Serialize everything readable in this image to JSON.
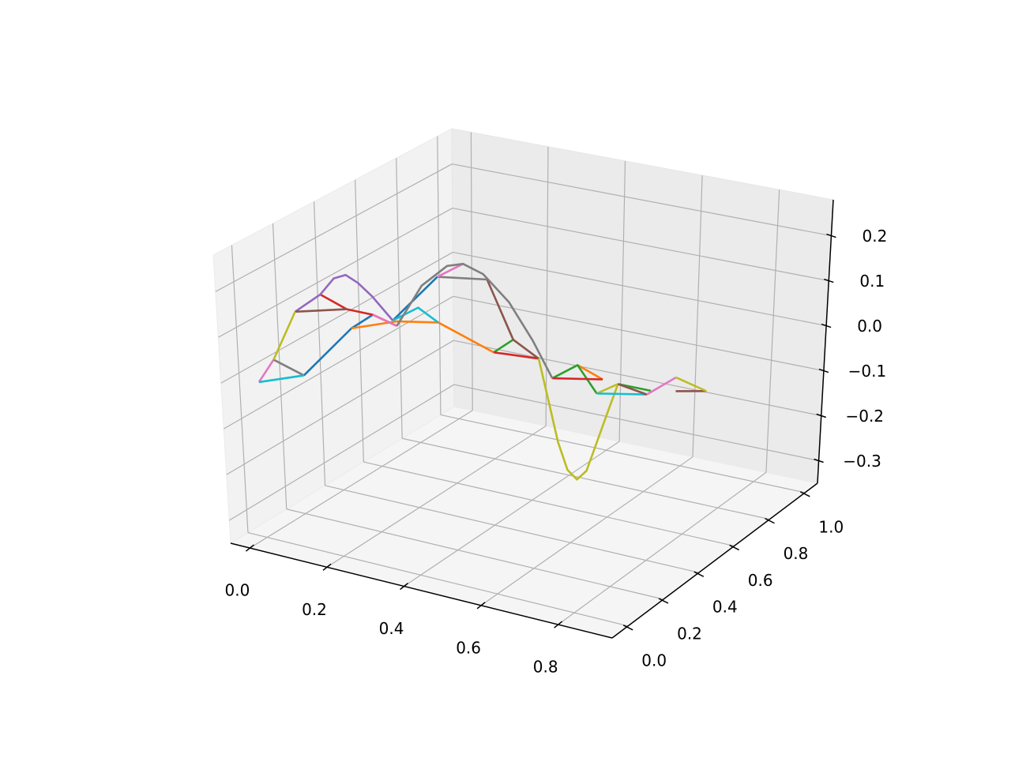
{
  "chart_data": {
    "type": "line3d",
    "xlim": [
      -0.05,
      0.94
    ],
    "ylim": [
      -0.09,
      1.07
    ],
    "zlim": [
      -0.35,
      0.28
    ],
    "xticks": [
      {
        "value": 0,
        "label": "0.0"
      },
      0.2,
      0.4,
      0.6,
      0.8
    ],
    "yticks": [
      {
        "value": 0,
        "label": "0.0"
      },
      0.2,
      0.4,
      0.6,
      0.8,
      {
        "value": 1,
        "label": "1.0"
      }
    ],
    "zticks": [
      {
        "value": -0.3,
        "label": "−0.3"
      },
      {
        "value": -0.2,
        "label": "−0.2"
      },
      {
        "value": -0.1,
        "label": "−0.1"
      },
      {
        "value": 0,
        "label": "0.0"
      },
      0.1,
      0.2
    ],
    "grid": true,
    "series": [
      {
        "color": "#1f77b4",
        "x": [
          0.09,
          0.19,
          0.23
        ],
        "y": [
          0.05,
          0.1,
          0.13
        ],
        "z": [
          0.01,
          0.12,
          0.15
        ]
      },
      {
        "color": "#ff7f0e",
        "x": [
          0.19,
          0.28,
          0.36,
          0.47
        ],
        "y": [
          0.1,
          0.15,
          0.2,
          0.26
        ],
        "z": [
          0.12,
          0.14,
          0.14,
          0.08
        ]
      },
      {
        "color": "#2ca02c",
        "x": [
          0.47,
          0.51
        ],
        "y": [
          0.26,
          0.28
        ],
        "z": [
          0.08,
          0.11
        ]
      },
      {
        "color": "#d62728",
        "x": [
          0.13,
          0.18,
          0.23,
          0.28
        ],
        "y": [
          0.07,
          0.1,
          0.13,
          0.15
        ],
        "z": [
          0.19,
          0.16,
          0.15,
          0.13
        ]
      },
      {
        "color": "#9467bd",
        "x": [
          0.08,
          0.13,
          0.155,
          0.18,
          0.205,
          0.23,
          0.27
        ],
        "y": [
          0.04,
          0.07,
          0.09,
          0.1,
          0.11,
          0.13,
          0.15
        ],
        "z": [
          0.15,
          0.19,
          0.225,
          0.235,
          0.22,
          0.19,
          0.14
        ]
      },
      {
        "color": "#8c564b",
        "x": [
          0.08,
          0.18
        ],
        "y": [
          0.04,
          0.1
        ],
        "z": [
          0.15,
          0.16
        ]
      },
      {
        "color": "#e377c2",
        "x": [
          0,
          0.03
        ],
        "y": [
          0,
          0.02
        ],
        "z": [
          -0.01,
          0.04
        ]
      },
      {
        "color": "#7f7f7f",
        "x": [
          0.03,
          0.09
        ],
        "y": [
          0.02,
          0.05
        ],
        "z": [
          0.04,
          0.01
        ]
      },
      {
        "color": "#bcbd22",
        "x": [
          0.03,
          0.08
        ],
        "y": [
          0.02,
          0.04
        ],
        "z": [
          0.04,
          0.15
        ]
      },
      {
        "color": "#17becf",
        "x": [
          0,
          0.09
        ],
        "y": [
          0,
          0.05
        ],
        "z": [
          -0.01,
          0.01
        ]
      },
      {
        "color": "#1f77b4",
        "x": [
          0.27,
          0.36
        ],
        "y": [
          0.15,
          0.2
        ],
        "z": [
          0.14,
          0.24
        ]
      },
      {
        "color": "#ff7f0e",
        "x": [
          0.64,
          0.69
        ],
        "y": [
          0.35,
          0.38
        ],
        "z": [
          0.06,
          0.03
        ]
      },
      {
        "color": "#2ca02c",
        "x": [
          0.59,
          0.64,
          0.68
        ],
        "y": [
          0.32,
          0.35,
          0.37
        ],
        "z": [
          0.03,
          0.06,
          0.0
        ]
      },
      {
        "color": "#d62728",
        "x": [
          0.47,
          0.56
        ],
        "y": [
          0.26,
          0.31
        ],
        "z": [
          0.08,
          0.07
        ]
      },
      {
        "color": "#8c564b",
        "x": [
          0.46,
          0.51,
          0.56
        ],
        "y": [
          0.25,
          0.28,
          0.31
        ],
        "z": [
          0.24,
          0.11,
          0.07
        ]
      },
      {
        "color": "#e377c2",
        "x": [
          0.23,
          0.28
        ],
        "y": [
          0.13,
          0.15
        ],
        "z": [
          0.15,
          0.13
        ]
      },
      {
        "color": "#7f7f7f",
        "x": [
          0.36,
          0.46
        ],
        "y": [
          0.2,
          0.25
        ],
        "z": [
          0.24,
          0.24
        ]
      },
      {
        "color": "#bcbd22",
        "x": [
          0.56,
          0.58,
          0.6,
          0.62,
          0.64,
          0.66,
          0.68,
          0.7,
          0.72
        ],
        "y": [
          0.31,
          0.32,
          0.33,
          0.34,
          0.35,
          0.36,
          0.37,
          0.39,
          0.4
        ],
        "z": [
          0.07,
          -0.02,
          -0.11,
          -0.17,
          -0.19,
          -0.17,
          -0.11,
          -0.04,
          0.02
        ]
      },
      {
        "color": "#17becf",
        "x": [
          0.27,
          0.32,
          0.36
        ],
        "y": [
          0.15,
          0.18,
          0.2
        ],
        "z": [
          0.14,
          0.17,
          0.14
        ]
      },
      {
        "color": "#d62728",
        "x": [
          0.59,
          0.69
        ],
        "y": [
          0.32,
          0.38
        ],
        "z": [
          0.03,
          0.03
        ]
      },
      {
        "color": "#e377c2",
        "x": [
          0.36,
          0.41
        ],
        "y": [
          0.2,
          0.23
        ],
        "z": [
          0.24,
          0.27
        ]
      },
      {
        "color": "#7f7f7f",
        "x": [
          0.28,
          0.33,
          0.38,
          0.41,
          0.45,
          0.5,
          0.55,
          0.59
        ],
        "y": [
          0.15,
          0.18,
          0.21,
          0.23,
          0.25,
          0.28,
          0.3,
          0.32
        ],
        "z": [
          0.13,
          0.22,
          0.265,
          0.27,
          0.25,
          0.19,
          0.11,
          0.03
        ]
      },
      {
        "color": "#bcbd22",
        "x": [
          0.68,
          0.72
        ],
        "y": [
          0.37,
          0.4
        ],
        "z": [
          0.0,
          0.02
        ]
      },
      {
        "color": "#17becf",
        "x": [
          0.68,
          0.78
        ],
        "y": [
          0.37,
          0.43
        ],
        "z": [
          0.0,
          0.0
        ]
      },
      {
        "color": "#2ca02c",
        "x": [
          0.72,
          0.79
        ],
        "y": [
          0.4,
          0.43
        ],
        "z": [
          0.02,
          0.01
        ]
      },
      {
        "color": "#8c564b",
        "x": [
          0.72,
          0.78
        ],
        "y": [
          0.4,
          0.43
        ],
        "z": [
          0.02,
          0.0
        ]
      },
      {
        "color": "#8c564b",
        "x": [
          0.84,
          0.9
        ],
        "y": [
          0.46,
          0.5
        ],
        "z": [
          0.01,
          0.01
        ]
      },
      {
        "color": "#e377c2",
        "x": [
          0.78,
          0.84
        ],
        "y": [
          0.43,
          0.46
        ],
        "z": [
          0.0,
          0.04
        ]
      },
      {
        "color": "#bcbd22",
        "x": [
          0.84,
          0.9
        ],
        "y": [
          0.46,
          0.5
        ],
        "z": [
          0.04,
          0.01
        ]
      }
    ]
  }
}
